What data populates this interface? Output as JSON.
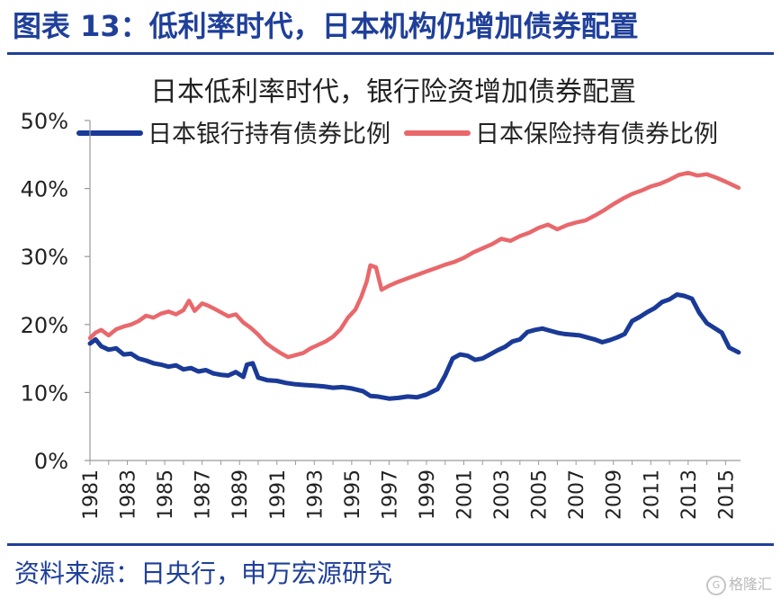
{
  "header": {
    "title": "图表 13：低利率时代，日本机构仍增加债券配置"
  },
  "footer": {
    "source": "资料来源：日央行，申万宏源研究",
    "watermark": "格隆汇",
    "watermark_icon": "G"
  },
  "chart_data": {
    "type": "line",
    "title": "日本低利率时代，银行险资增加债券配置",
    "xlabel": "",
    "ylabel": "",
    "xlim": [
      1981,
      2015.8
    ],
    "ylim": [
      0,
      0.5
    ],
    "y_ticks": [
      0,
      0.1,
      0.2,
      0.3,
      0.4,
      0.5
    ],
    "y_tick_labels": [
      "0%",
      "10%",
      "20%",
      "30%",
      "40%",
      "50%"
    ],
    "x_ticks": [
      1981,
      1983,
      1985,
      1987,
      1989,
      1991,
      1993,
      1995,
      1997,
      1999,
      2001,
      2003,
      2005,
      2007,
      2009,
      2011,
      2013,
      2015
    ],
    "x_tick_labels": [
      "1981",
      "1983",
      "1985",
      "1987",
      "1989",
      "1991",
      "1993",
      "1995",
      "1997",
      "1999",
      "2001",
      "2003",
      "2005",
      "2007",
      "2009",
      "2011",
      "2013",
      "2015"
    ],
    "grid": false,
    "legend_position": "top",
    "series": [
      {
        "name": "日本银行持有债券比例",
        "color": "#1a3a97",
        "x": [
          1981,
          1981.3,
          1981.6,
          1982,
          1982.4,
          1982.8,
          1983.2,
          1983.6,
          1984,
          1984.4,
          1984.8,
          1985.2,
          1985.6,
          1986,
          1986.4,
          1986.8,
          1987.2,
          1987.6,
          1988,
          1988.4,
          1988.8,
          1989.2,
          1989.4,
          1989.7,
          1990,
          1990.5,
          1991,
          1991.5,
          1992,
          1992.5,
          1993,
          1993.5,
          1994,
          1994.5,
          1995,
          1995.3,
          1995.6,
          1996,
          1996.4,
          1996.8,
          1997,
          1997.5,
          1998,
          1998.5,
          1999,
          1999.3,
          1999.6,
          2000,
          2000.4,
          2000.8,
          2001.2,
          2001.6,
          2002,
          2002.4,
          2002.8,
          2003.2,
          2003.6,
          2004,
          2004.4,
          2004.8,
          2005.2,
          2005.6,
          2006,
          2006.4,
          2006.8,
          2007.2,
          2007.6,
          2008,
          2008.4,
          2008.8,
          2009.2,
          2009.6,
          2010,
          2010.4,
          2010.8,
          2011.2,
          2011.6,
          2012,
          2012.4,
          2012.8,
          2013.2,
          2013.6,
          2014,
          2014.4,
          2014.8,
          2015.2,
          2015.7
        ],
        "y": [
          0.172,
          0.178,
          0.168,
          0.163,
          0.165,
          0.156,
          0.157,
          0.15,
          0.147,
          0.143,
          0.141,
          0.138,
          0.14,
          0.134,
          0.136,
          0.131,
          0.133,
          0.128,
          0.126,
          0.125,
          0.13,
          0.123,
          0.141,
          0.143,
          0.122,
          0.118,
          0.117,
          0.114,
          0.112,
          0.111,
          0.11,
          0.109,
          0.107,
          0.108,
          0.106,
          0.104,
          0.102,
          0.095,
          0.094,
          0.092,
          0.091,
          0.092,
          0.094,
          0.093,
          0.097,
          0.101,
          0.105,
          0.125,
          0.15,
          0.156,
          0.154,
          0.148,
          0.15,
          0.156,
          0.162,
          0.167,
          0.175,
          0.178,
          0.189,
          0.192,
          0.194,
          0.191,
          0.188,
          0.186,
          0.185,
          0.184,
          0.181,
          0.178,
          0.174,
          0.177,
          0.181,
          0.186,
          0.205,
          0.211,
          0.218,
          0.224,
          0.233,
          0.237,
          0.244,
          0.242,
          0.238,
          0.217,
          0.202,
          0.195,
          0.188,
          0.166,
          0.159
        ]
      },
      {
        "name": "日本保险持有债券比例",
        "color": "#e8686c",
        "x": [
          1981,
          1981.3,
          1981.6,
          1982,
          1982.4,
          1982.8,
          1983.2,
          1983.6,
          1984,
          1984.4,
          1984.8,
          1985.2,
          1985.6,
          1986,
          1986.3,
          1986.6,
          1987,
          1987.3,
          1987.6,
          1988,
          1988.4,
          1988.8,
          1989.2,
          1989.6,
          1990,
          1990.4,
          1990.8,
          1991.2,
          1991.6,
          1992,
          1992.4,
          1992.8,
          1993.2,
          1993.6,
          1994,
          1994.4,
          1994.8,
          1995.2,
          1995.5,
          1995.8,
          1996,
          1996.3,
          1996.6,
          1997,
          1997.5,
          1998,
          1998.5,
          1999,
          1999.5,
          2000,
          2000.5,
          2001,
          2001.5,
          2002,
          2002.5,
          2003,
          2003.5,
          2004,
          2004.5,
          2005,
          2005.5,
          2006,
          2006.5,
          2007,
          2007.5,
          2008,
          2008.5,
          2009,
          2009.5,
          2010,
          2010.5,
          2011,
          2011.5,
          2012,
          2012.5,
          2013,
          2013.5,
          2014,
          2014.5,
          2015,
          2015.7
        ],
        "y": [
          0.18,
          0.188,
          0.192,
          0.184,
          0.193,
          0.197,
          0.2,
          0.205,
          0.213,
          0.21,
          0.216,
          0.219,
          0.215,
          0.221,
          0.235,
          0.22,
          0.231,
          0.228,
          0.224,
          0.218,
          0.212,
          0.215,
          0.203,
          0.195,
          0.185,
          0.173,
          0.165,
          0.158,
          0.152,
          0.155,
          0.158,
          0.165,
          0.17,
          0.175,
          0.182,
          0.193,
          0.21,
          0.222,
          0.24,
          0.263,
          0.287,
          0.284,
          0.251,
          0.257,
          0.263,
          0.268,
          0.273,
          0.278,
          0.283,
          0.288,
          0.292,
          0.298,
          0.306,
          0.312,
          0.318,
          0.326,
          0.323,
          0.33,
          0.335,
          0.342,
          0.347,
          0.34,
          0.346,
          0.35,
          0.353,
          0.36,
          0.368,
          0.377,
          0.385,
          0.392,
          0.397,
          0.403,
          0.407,
          0.413,
          0.42,
          0.423,
          0.419,
          0.421,
          0.416,
          0.41,
          0.401
        ]
      }
    ]
  }
}
